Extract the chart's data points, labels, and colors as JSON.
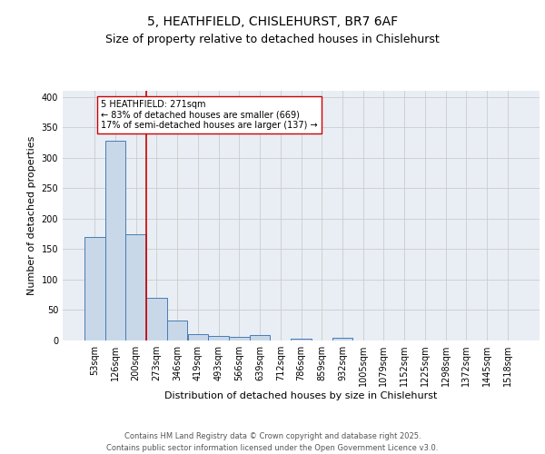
{
  "title1": "5, HEATHFIELD, CHISLEHURST, BR7 6AF",
  "title2": "Size of property relative to detached houses in Chislehurst",
  "xlabel": "Distribution of detached houses by size in Chislehurst",
  "ylabel": "Number of detached properties",
  "categories": [
    "53sqm",
    "126sqm",
    "200sqm",
    "273sqm",
    "346sqm",
    "419sqm",
    "493sqm",
    "566sqm",
    "639sqm",
    "712sqm",
    "786sqm",
    "859sqm",
    "932sqm",
    "1005sqm",
    "1079sqm",
    "1152sqm",
    "1225sqm",
    "1298sqm",
    "1372sqm",
    "1445sqm",
    "1518sqm"
  ],
  "values": [
    170,
    328,
    175,
    70,
    33,
    10,
    8,
    6,
    9,
    0,
    3,
    0,
    5,
    0,
    0,
    0,
    0,
    0,
    0,
    0,
    0
  ],
  "bar_color": "#c8d8e8",
  "bar_edge_color": "#4a7ab5",
  "grid_color": "#cccccc",
  "bg_color": "#e8eef4",
  "annotation_text": "5 HEATHFIELD: 271sqm\n← 83% of detached houses are smaller (669)\n17% of semi-detached houses are larger (137) →",
  "vline_x_index": 2.5,
  "vline_color": "#cc0000",
  "annotation_box_color": "#cc0000",
  "ylim": [
    0,
    410
  ],
  "yticks": [
    0,
    50,
    100,
    150,
    200,
    250,
    300,
    350,
    400
  ],
  "footer": "Contains HM Land Registry data © Crown copyright and database right 2025.\nContains public sector information licensed under the Open Government Licence v3.0.",
  "title1_fontsize": 10,
  "title2_fontsize": 9,
  "ylabel_fontsize": 8,
  "xlabel_fontsize": 8,
  "tick_fontsize": 7,
  "annotation_fontsize": 7,
  "footer_fontsize": 6
}
